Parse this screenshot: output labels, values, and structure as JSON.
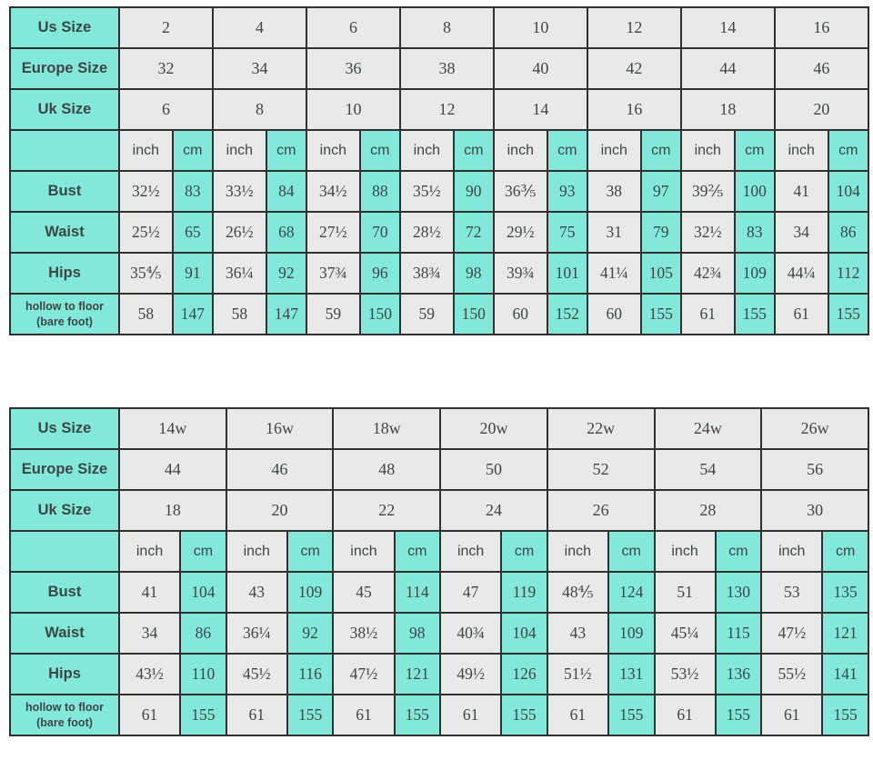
{
  "colors": {
    "teal": "#82e8da",
    "cell_gray": "#e9e9e9",
    "border": "#303030",
    "label_text": "#1e3b3a",
    "value_text": "#3d4646",
    "bg": "#ffffff"
  },
  "labels": {
    "us": "Us Size",
    "europe": "Europe Size",
    "uk": "Uk Size",
    "bust": "Bust",
    "waist": "Waist",
    "hips": "Hips",
    "hollow": "hollow to floor (bare foot)",
    "inch": "inch",
    "cm": "cm"
  },
  "chart_data": [
    {
      "type": "table",
      "us_sizes": [
        "2",
        "4",
        "6",
        "8",
        "10",
        "12",
        "14",
        "16"
      ],
      "europe_sizes": [
        "32",
        "34",
        "36",
        "38",
        "40",
        "42",
        "44",
        "46"
      ],
      "uk_sizes": [
        "6",
        "8",
        "10",
        "12",
        "14",
        "16",
        "18",
        "20"
      ],
      "measurements": {
        "bust": {
          "inch": [
            "32½",
            "33½",
            "34½",
            "35½",
            "36⅗",
            "38",
            "39⅖",
            "41"
          ],
          "cm": [
            "83",
            "84",
            "88",
            "90",
            "93",
            "97",
            "100",
            "104"
          ]
        },
        "waist": {
          "inch": [
            "25½",
            "26½",
            "27½",
            "28½",
            "29½",
            "31",
            "32½",
            "34"
          ],
          "cm": [
            "65",
            "68",
            "70",
            "72",
            "75",
            "79",
            "83",
            "86"
          ]
        },
        "hips": {
          "inch": [
            "35⅘",
            "36¼",
            "37¾",
            "38¾",
            "39¾",
            "41¼",
            "42¾",
            "44¼"
          ],
          "cm": [
            "91",
            "92",
            "96",
            "98",
            "101",
            "105",
            "109",
            "112"
          ]
        },
        "hollow": {
          "inch": [
            "58",
            "58",
            "59",
            "59",
            "60",
            "60",
            "61",
            "61"
          ],
          "cm": [
            "147",
            "147",
            "150",
            "150",
            "152",
            "155",
            "155",
            "155"
          ]
        }
      }
    },
    {
      "type": "table",
      "us_sizes": [
        "14w",
        "16w",
        "18w",
        "20w",
        "22w",
        "24w",
        "26w"
      ],
      "europe_sizes": [
        "44",
        "46",
        "48",
        "50",
        "52",
        "54",
        "56"
      ],
      "uk_sizes": [
        "18",
        "20",
        "22",
        "24",
        "26",
        "28",
        "30"
      ],
      "measurements": {
        "bust": {
          "inch": [
            "41",
            "43",
            "45",
            "47",
            "48⅘",
            "51",
            "53"
          ],
          "cm": [
            "104",
            "109",
            "114",
            "119",
            "124",
            "130",
            "135"
          ]
        },
        "waist": {
          "inch": [
            "34",
            "36¼",
            "38½",
            "40¾",
            "43",
            "45¼",
            "47½"
          ],
          "cm": [
            "86",
            "92",
            "98",
            "104",
            "109",
            "115",
            "121"
          ]
        },
        "hips": {
          "inch": [
            "43½",
            "45½",
            "47½",
            "49½",
            "51½",
            "53½",
            "55½"
          ],
          "cm": [
            "110",
            "116",
            "121",
            "126",
            "131",
            "136",
            "141"
          ]
        },
        "hollow": {
          "inch": [
            "61",
            "61",
            "61",
            "61",
            "61",
            "61",
            "61"
          ],
          "cm": [
            "155",
            "155",
            "155",
            "155",
            "155",
            "155",
            "155"
          ]
        }
      }
    }
  ]
}
